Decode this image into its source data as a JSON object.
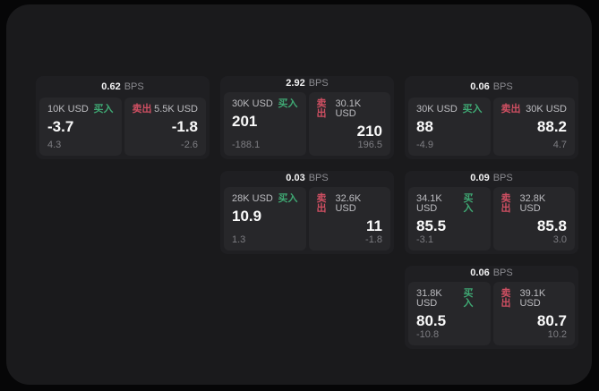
{
  "labels": {
    "bps_unit": "BPS",
    "buy": "买入",
    "sell": "卖出"
  },
  "colors": {
    "buy": "#3fa873",
    "sell": "#cf4f62",
    "panel_bg": "#1a1a1c",
    "card_bg": "#1f1f22",
    "subcard_bg": "#27272a"
  },
  "cards": [
    {
      "bps": "0.62",
      "col": 1,
      "row": 1,
      "buy": {
        "size": "10K USD",
        "value": "-3.7",
        "change": "4.3"
      },
      "sell": {
        "size": "5.5K USD",
        "value": "-1.8",
        "change": "-2.6"
      }
    },
    {
      "bps": "2.92",
      "col": 2,
      "row": 1,
      "buy": {
        "size": "30K USD",
        "value": "201",
        "change": "-188.1"
      },
      "sell": {
        "size": "30.1K USD",
        "value": "210",
        "change": "196.5"
      }
    },
    {
      "bps": "0.06",
      "col": 3,
      "row": 1,
      "buy": {
        "size": "30K USD",
        "value": "88",
        "change": "-4.9"
      },
      "sell": {
        "size": "30K USD",
        "value": "88.2",
        "change": "4.7"
      }
    },
    {
      "bps": "0.03",
      "col": 2,
      "row": 2,
      "buy": {
        "size": "28K USD",
        "value": "10.9",
        "change": "1.3"
      },
      "sell": {
        "size": "32.6K USD",
        "value": "11",
        "change": "-1.8"
      }
    },
    {
      "bps": "0.09",
      "col": 3,
      "row": 2,
      "buy": {
        "size": "34.1K USD",
        "value": "85.5",
        "change": "-3.1"
      },
      "sell": {
        "size": "32.8K USD",
        "value": "85.8",
        "change": "3.0"
      }
    },
    {
      "bps": "0.06",
      "col": 3,
      "row": 3,
      "buy": {
        "size": "31.8K USD",
        "value": "80.5",
        "change": "-10.8"
      },
      "sell": {
        "size": "39.1K USD",
        "value": "80.7",
        "change": "10.2"
      }
    }
  ]
}
